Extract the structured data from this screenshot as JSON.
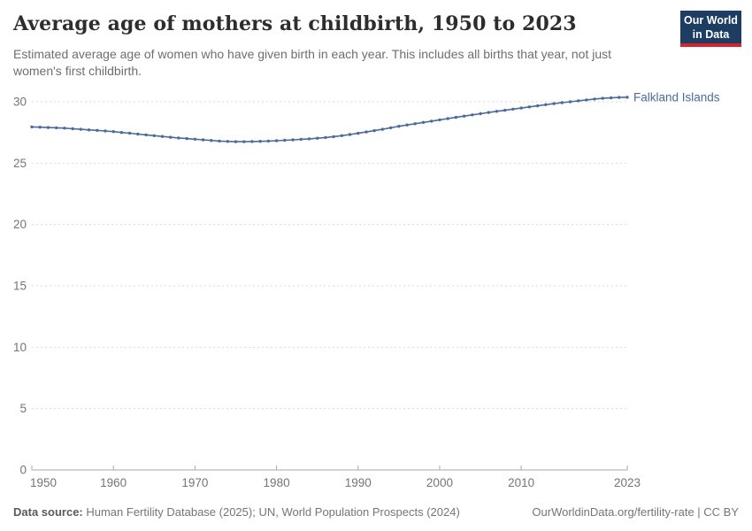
{
  "header": {
    "title": "Average age of mothers at childbirth, 1950 to 2023",
    "subtitle": "Estimated average age of women who have given birth in each year. This includes all births that year, not just\nwomen's first childbirth."
  },
  "logo": {
    "line1": "Our World",
    "line2": "in Data",
    "bg_color": "#1d3d63",
    "stripe_color": "#d8232a"
  },
  "footer": {
    "data_source_label": "Data source:",
    "data_source_text": " Human Fertility Database (2025); UN, World Population Prospects (2024)",
    "link_text": "OurWorldinData.org/fertility-rate | CC BY"
  },
  "colors": {
    "line": "#4c6a9c",
    "grid": "#dadada",
    "axis": "#a8a8a8",
    "tick_label": "#757575",
    "entity_label": "#4c6a9c"
  },
  "chart_data": {
    "type": "line",
    "title": "Average age of mothers at childbirth, 1950 to 2023",
    "xlabel": "",
    "ylabel": "",
    "ylim": [
      0,
      30
    ],
    "yticks": [
      0,
      5,
      10,
      15,
      20,
      25,
      30
    ],
    "xticks": [
      1950,
      1960,
      1970,
      1980,
      1990,
      2000,
      2010,
      2023
    ],
    "grid": "dashed-horizontal",
    "legend": "end-of-line-label",
    "x": [
      1950,
      1951,
      1952,
      1953,
      1954,
      1955,
      1956,
      1957,
      1958,
      1959,
      1960,
      1961,
      1962,
      1963,
      1964,
      1965,
      1966,
      1967,
      1968,
      1969,
      1970,
      1971,
      1972,
      1973,
      1974,
      1975,
      1976,
      1977,
      1978,
      1979,
      1980,
      1981,
      1982,
      1983,
      1984,
      1985,
      1986,
      1987,
      1988,
      1989,
      1990,
      1991,
      1992,
      1993,
      1994,
      1995,
      1996,
      1997,
      1998,
      1999,
      2000,
      2001,
      2002,
      2003,
      2004,
      2005,
      2006,
      2007,
      2008,
      2009,
      2010,
      2011,
      2012,
      2013,
      2014,
      2015,
      2016,
      2017,
      2018,
      2019,
      2020,
      2021,
      2022,
      2023
    ],
    "series": [
      {
        "name": "Falkland Islands",
        "color": "#4c6a9c",
        "values": [
          27.95,
          27.93,
          27.9,
          27.88,
          27.85,
          27.8,
          27.76,
          27.71,
          27.67,
          27.62,
          27.57,
          27.5,
          27.44,
          27.37,
          27.3,
          27.24,
          27.17,
          27.11,
          27.05,
          27.0,
          26.95,
          26.9,
          26.85,
          26.8,
          26.77,
          26.75,
          26.75,
          26.76,
          26.78,
          26.8,
          26.83,
          26.86,
          26.9,
          26.94,
          26.98,
          27.03,
          27.09,
          27.16,
          27.24,
          27.33,
          27.43,
          27.54,
          27.65,
          27.76,
          27.88,
          28.0,
          28.11,
          28.21,
          28.32,
          28.42,
          28.53,
          28.63,
          28.73,
          28.83,
          28.93,
          29.03,
          29.13,
          29.22,
          29.31,
          29.4,
          29.49,
          29.58,
          29.67,
          29.76,
          29.85,
          29.93,
          30.0,
          30.08,
          30.15,
          30.22,
          30.28,
          30.32,
          30.35,
          30.37
        ]
      }
    ]
  }
}
